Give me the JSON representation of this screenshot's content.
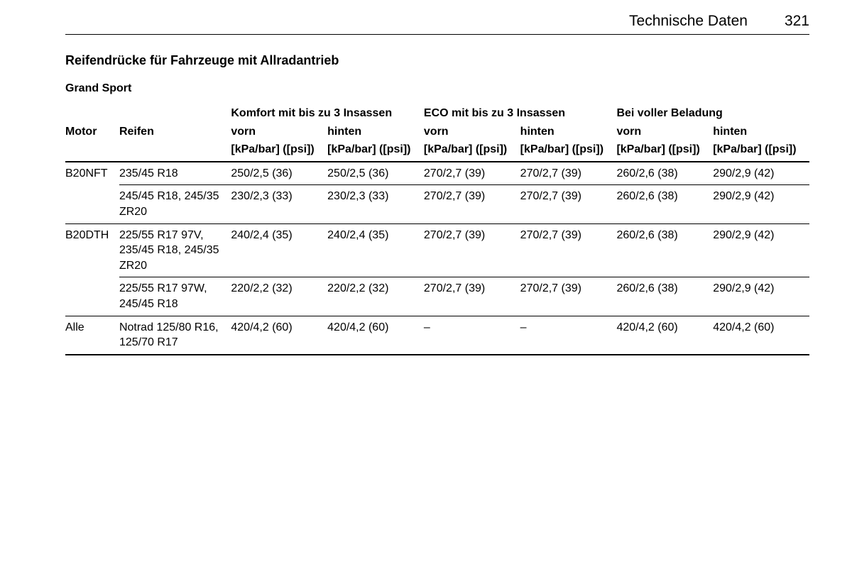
{
  "header": {
    "section": "Technische Daten",
    "page_number": "321"
  },
  "subheading": "Reifendrücke für Fahrzeuge mit Allradantrieb",
  "vehicle_model": "Grand Sport",
  "column_groups": {
    "komfort": "Komfort mit bis zu 3 Insassen",
    "eco": "ECO mit bis zu 3 Insassen",
    "full": "Bei voller Beladung"
  },
  "column_labels": {
    "motor": "Motor",
    "reifen": "Reifen",
    "vorn": "vorn",
    "hinten": "hinten",
    "unit": "[kPa/bar] ([psi])"
  },
  "rows": [
    {
      "motor": "B20NFT",
      "reifen": "235/45 R18",
      "komfort_vorn": "250/2,5 (36)",
      "komfort_hinten": "250/2,5 (36)",
      "eco_vorn": "270/2,7 (39)",
      "eco_hinten": "270/2,7 (39)",
      "full_vorn": "260/2,6 (38)",
      "full_hinten": "290/2,9 (42)"
    },
    {
      "motor": "",
      "reifen": "245/45 R18, 245/35 ZR20",
      "komfort_vorn": "230/2,3 (33)",
      "komfort_hinten": "230/2,3 (33)",
      "eco_vorn": "270/2,7 (39)",
      "eco_hinten": "270/2,7 (39)",
      "full_vorn": "260/2,6 (38)",
      "full_hinten": "290/2,9 (42)"
    },
    {
      "motor": "B20DTH",
      "reifen": "225/55 R17 97V, 235/45 R18, 245/35 ZR20",
      "komfort_vorn": "240/2,4 (35)",
      "komfort_hinten": "240/2,4 (35)",
      "eco_vorn": "270/2,7 (39)",
      "eco_hinten": "270/2,7 (39)",
      "full_vorn": "260/2,6 (38)",
      "full_hinten": "290/2,9 (42)"
    },
    {
      "motor": "",
      "reifen": "225/55 R17 97W, 245/45 R18",
      "komfort_vorn": "220/2,2 (32)",
      "komfort_hinten": "220/2,2 (32)",
      "eco_vorn": "270/2,7 (39)",
      "eco_hinten": "270/2,7 (39)",
      "full_vorn": "260/2,6 (38)",
      "full_hinten": "290/2,9 (42)"
    },
    {
      "motor": "Alle",
      "reifen": "Notrad 125/80 R16, 125/70 R17",
      "komfort_vorn": "420/4,2 (60)",
      "komfort_hinten": "420/4,2 (60)",
      "eco_vorn": "–",
      "eco_hinten": "–",
      "full_vorn": "420/4,2 (60)",
      "full_hinten": "420/4,2 (60)"
    }
  ]
}
